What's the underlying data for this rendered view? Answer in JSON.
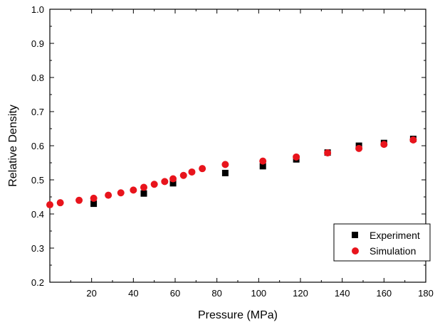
{
  "chart_data": {
    "type": "scatter",
    "title": "",
    "xlabel": "Pressure (MPa)",
    "ylabel": "Relative Density",
    "xlim": [
      0,
      180
    ],
    "ylim": [
      0.2,
      1.0
    ],
    "grid": false,
    "legend_position": "bottom-right",
    "x_ticks": [
      20,
      40,
      60,
      80,
      100,
      120,
      140,
      160,
      180
    ],
    "x_tick_labels": [
      "20",
      "40",
      "60",
      "80",
      "100",
      "120",
      "140",
      "160",
      "180"
    ],
    "y_ticks": [
      0.2,
      0.3,
      0.4,
      0.5,
      0.6,
      0.7,
      0.8,
      0.9,
      1.0
    ],
    "y_tick_labels": [
      "0.2",
      "0.3",
      "0.4",
      "0.5",
      "0.6",
      "0.7",
      "0.8",
      "0.9",
      "1.0"
    ],
    "series": [
      {
        "name": "Experiment",
        "marker": "square",
        "color": "#000000",
        "points": [
          {
            "x": 21,
            "y": 0.43
          },
          {
            "x": 45,
            "y": 0.46
          },
          {
            "x": 59,
            "y": 0.49
          },
          {
            "x": 84,
            "y": 0.52
          },
          {
            "x": 102,
            "y": 0.54
          },
          {
            "x": 118,
            "y": 0.56
          },
          {
            "x": 133,
            "y": 0.58
          },
          {
            "x": 148,
            "y": 0.6
          },
          {
            "x": 160,
            "y": 0.608
          },
          {
            "x": 174,
            "y": 0.62
          }
        ]
      },
      {
        "name": "Simulation",
        "marker": "circle",
        "color": "#e8141c",
        "points": [
          {
            "x": 0,
            "y": 0.427
          },
          {
            "x": 5,
            "y": 0.433
          },
          {
            "x": 14,
            "y": 0.44
          },
          {
            "x": 21,
            "y": 0.446
          },
          {
            "x": 28,
            "y": 0.455
          },
          {
            "x": 34,
            "y": 0.462
          },
          {
            "x": 40,
            "y": 0.47
          },
          {
            "x": 45,
            "y": 0.478
          },
          {
            "x": 50,
            "y": 0.487
          },
          {
            "x": 55,
            "y": 0.495
          },
          {
            "x": 59,
            "y": 0.503
          },
          {
            "x": 64,
            "y": 0.513
          },
          {
            "x": 68,
            "y": 0.523
          },
          {
            "x": 73,
            "y": 0.533
          },
          {
            "x": 84,
            "y": 0.545
          },
          {
            "x": 102,
            "y": 0.555
          },
          {
            "x": 118,
            "y": 0.567
          },
          {
            "x": 133,
            "y": 0.579
          },
          {
            "x": 148,
            "y": 0.592
          },
          {
            "x": 160,
            "y": 0.604
          },
          {
            "x": 174,
            "y": 0.617
          }
        ]
      }
    ]
  }
}
